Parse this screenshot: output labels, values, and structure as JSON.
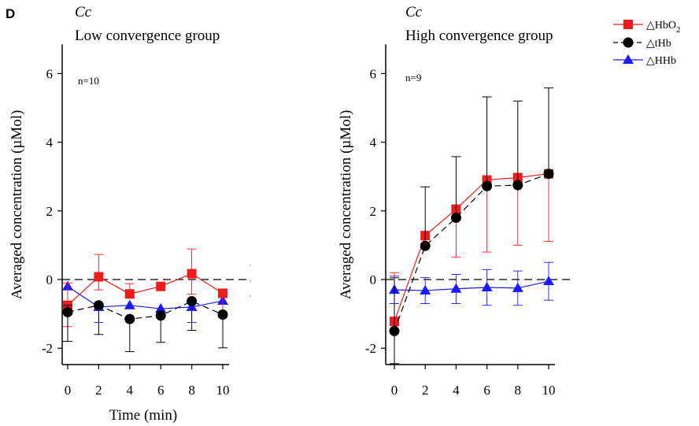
{
  "figure": {
    "panel_letter": "D"
  },
  "legend": {
    "entries": [
      {
        "id": "hbo2",
        "label": "△HbO",
        "subscript": "2",
        "color": "#ee1c1c",
        "marker": "square",
        "line": "solid"
      },
      {
        "id": "thb",
        "label": "△tHb",
        "subscript": "",
        "color": "#000000",
        "marker": "circle",
        "line": "dashed"
      },
      {
        "id": "hhb",
        "label": "△HHb",
        "subscript": "",
        "color": "#1a1aff",
        "marker": "triangle",
        "line": "solid"
      }
    ]
  },
  "chart_data": [
    {
      "type": "line",
      "species": "Cc",
      "title": "Low convergence group",
      "n_label": "n=10",
      "xlabel": "Time (min)",
      "ylabel": "Averaged concentration (µMol)",
      "x": [
        0,
        2,
        4,
        6,
        8,
        10
      ],
      "x_ticks": [
        "0",
        "2",
        "4",
        "6",
        "8",
        "10"
      ],
      "y_ticks": [
        "-2",
        "0",
        "2",
        "4",
        "6"
      ],
      "xlim": [
        -0.4,
        10.6
      ],
      "ylim": [
        -2.45,
        6.85
      ],
      "reference_line_y": 0,
      "series": [
        {
          "id": "hbo2",
          "values": [
            -0.75,
            0.08,
            -0.42,
            -0.2,
            0.17,
            -0.4
          ],
          "err_up": [
            0.65,
            0.65,
            0.3,
            0.05,
            0.72,
            0.06
          ],
          "err_down": [
            0.62,
            0.38,
            0.05,
            0.05,
            0.6,
            0.7
          ]
        },
        {
          "id": "thb",
          "values": [
            -0.95,
            -0.75,
            -1.15,
            -1.05,
            -0.63,
            -1.02
          ],
          "err_up": [
            0.2,
            0.05,
            0.05,
            0.05,
            0.05,
            0.05
          ],
          "err_down": [
            0.85,
            0.85,
            0.95,
            0.78,
            0.85,
            0.97
          ]
        },
        {
          "id": "hhb",
          "values": [
            -0.2,
            -0.8,
            -0.75,
            -0.85,
            -0.8,
            -0.62
          ],
          "err_up": [
            0.05,
            0.05,
            0.05,
            0.05,
            0.05,
            0.05
          ],
          "err_down": [
            0.05,
            0.45,
            0.05,
            0.05,
            0.45,
            0.05
          ]
        }
      ]
    },
    {
      "type": "line",
      "species": "Cc",
      "title": "High convergence group",
      "n_label": "n=9",
      "xlabel": "",
      "ylabel": "Averaged concentration (µMol)",
      "x": [
        0,
        2,
        4,
        6,
        8,
        10
      ],
      "x_ticks": [
        "0",
        "2",
        "4",
        "6",
        "8",
        "10"
      ],
      "y_ticks": [
        "-2",
        "0",
        "2",
        "4",
        "6"
      ],
      "xlim": [
        -0.4,
        10.6
      ],
      "ylim": [
        -2.45,
        6.85
      ],
      "reference_line_y": 0,
      "series": [
        {
          "id": "hbo2",
          "values": [
            -1.22,
            1.28,
            2.05,
            2.9,
            2.97,
            3.08
          ],
          "err_up": [
            1.42,
            0.05,
            0.05,
            0.05,
            0.05,
            0.05
          ],
          "err_down": [
            0.05,
            0.05,
            1.4,
            2.1,
            1.97,
            1.97
          ]
        },
        {
          "id": "thb",
          "values": [
            -1.5,
            0.98,
            1.8,
            2.72,
            2.75,
            3.08
          ],
          "err_up": [
            1.55,
            1.72,
            1.78,
            2.6,
            2.45,
            2.5
          ],
          "err_down": [
            0.95,
            0.05,
            0.05,
            0.05,
            0.05,
            0.05
          ]
        },
        {
          "id": "hhb",
          "values": [
            -0.3,
            -0.32,
            -0.27,
            -0.23,
            -0.25,
            -0.05
          ],
          "err_up": [
            0.4,
            0.38,
            0.42,
            0.52,
            0.5,
            0.55
          ],
          "err_down": [
            0.4,
            0.38,
            0.43,
            0.52,
            0.5,
            0.55
          ]
        }
      ]
    }
  ]
}
